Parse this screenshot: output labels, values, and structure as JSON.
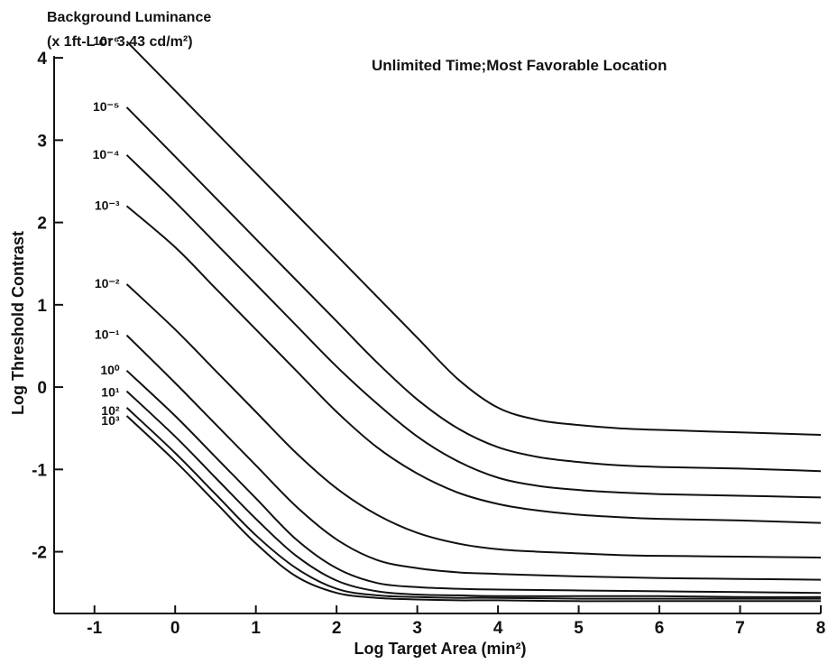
{
  "chart_data": {
    "type": "line",
    "title": "",
    "xlabel": "Log Target Area (min²)",
    "ylabel": "Log Threshold Contrast",
    "legend_title_line1": "Background Luminance",
    "legend_title_line2": "(x 1ft-L or 3.43 cd/m²)",
    "annotation": "Unlimited Time;Most Favorable Location",
    "xlim": [
      -1.5,
      8
    ],
    "ylim": [
      -2.75,
      4.1
    ],
    "xticks": [
      -1,
      0,
      1,
      2,
      3,
      4,
      5,
      6,
      7,
      8
    ],
    "yticks": [
      4,
      3,
      2,
      1,
      0,
      -1,
      -2
    ],
    "grid": false,
    "series": [
      {
        "name": "10⁻⁶",
        "x": [
          -0.6,
          0,
          0.5,
          1,
          1.5,
          2,
          2.5,
          3,
          3.5,
          4,
          4.5,
          5,
          5.5,
          6,
          7,
          8
        ],
        "y": [
          4.2,
          3.6,
          3.1,
          2.6,
          2.1,
          1.6,
          1.1,
          0.6,
          0.1,
          -0.25,
          -0.4,
          -0.46,
          -0.5,
          -0.52,
          -0.55,
          -0.58
        ]
      },
      {
        "name": "10⁻⁵",
        "x": [
          -0.6,
          0,
          0.5,
          1,
          1.5,
          2,
          2.5,
          3,
          3.5,
          4,
          4.5,
          5,
          5.5,
          6,
          7,
          8
        ],
        "y": [
          3.4,
          2.8,
          2.3,
          1.8,
          1.3,
          0.8,
          0.3,
          -0.15,
          -0.5,
          -0.73,
          -0.85,
          -0.91,
          -0.95,
          -0.97,
          -0.99,
          -1.02
        ]
      },
      {
        "name": "10⁻⁴",
        "x": [
          -0.6,
          0,
          0.5,
          1,
          1.5,
          2,
          2.5,
          3,
          3.5,
          4,
          4.5,
          5,
          5.5,
          6,
          7,
          8
        ],
        "y": [
          2.82,
          2.25,
          1.75,
          1.25,
          0.75,
          0.25,
          -0.2,
          -0.6,
          -0.9,
          -1.1,
          -1.2,
          -1.25,
          -1.28,
          -1.3,
          -1.32,
          -1.34
        ]
      },
      {
        "name": "10⁻³",
        "x": [
          -0.6,
          0,
          0.5,
          1,
          1.5,
          2,
          2.5,
          3,
          3.5,
          4,
          4.5,
          5,
          5.5,
          6,
          7,
          8
        ],
        "y": [
          2.2,
          1.7,
          1.2,
          0.7,
          0.2,
          -0.3,
          -0.73,
          -1.05,
          -1.28,
          -1.42,
          -1.5,
          -1.55,
          -1.58,
          -1.6,
          -1.62,
          -1.65
        ]
      },
      {
        "name": "10⁻²",
        "x": [
          -0.6,
          0,
          0.5,
          1,
          1.5,
          2,
          2.5,
          3,
          3.5,
          4,
          4.5,
          5,
          5.5,
          6,
          7,
          8
        ],
        "y": [
          1.25,
          0.7,
          0.2,
          -0.3,
          -0.8,
          -1.23,
          -1.55,
          -1.77,
          -1.9,
          -1.97,
          -2.0,
          -2.02,
          -2.04,
          -2.05,
          -2.06,
          -2.07
        ]
      },
      {
        "name": "10⁻¹",
        "x": [
          -0.6,
          0,
          0.5,
          1,
          1.5,
          2,
          2.5,
          3,
          3.5,
          4,
          5,
          6,
          7,
          8
        ],
        "y": [
          0.63,
          0.05,
          -0.45,
          -0.95,
          -1.45,
          -1.85,
          -2.1,
          -2.2,
          -2.25,
          -2.27,
          -2.3,
          -2.32,
          -2.33,
          -2.34
        ]
      },
      {
        "name": "10⁰",
        "x": [
          -0.6,
          0,
          0.5,
          1,
          1.5,
          2,
          2.5,
          3,
          3.5,
          4,
          5,
          6,
          7,
          8
        ],
        "y": [
          0.2,
          -0.35,
          -0.85,
          -1.35,
          -1.85,
          -2.2,
          -2.38,
          -2.43,
          -2.45,
          -2.46,
          -2.47,
          -2.48,
          -2.49,
          -2.5
        ]
      },
      {
        "name": "10¹",
        "x": [
          -0.6,
          0,
          0.5,
          1,
          1.5,
          2,
          2.5,
          3,
          3.5,
          4,
          5,
          6,
          7,
          8
        ],
        "y": [
          -0.05,
          -0.6,
          -1.1,
          -1.6,
          -2.05,
          -2.35,
          -2.48,
          -2.52,
          -2.53,
          -2.54,
          -2.54,
          -2.54,
          -2.55,
          -2.55
        ]
      },
      {
        "name": "10²",
        "x": [
          -0.6,
          0,
          0.5,
          1,
          1.5,
          2,
          2.5,
          3,
          3.5,
          4,
          5,
          6,
          7,
          8
        ],
        "y": [
          -0.25,
          -0.8,
          -1.3,
          -1.8,
          -2.2,
          -2.45,
          -2.53,
          -2.55,
          -2.56,
          -2.56,
          -2.57,
          -2.57,
          -2.57,
          -2.57
        ]
      },
      {
        "name": "10³",
        "x": [
          -0.6,
          0,
          0.5,
          1,
          1.5,
          2,
          2.5,
          3,
          3.5,
          4,
          5,
          6,
          7,
          8
        ],
        "y": [
          -0.35,
          -0.9,
          -1.4,
          -1.9,
          -2.3,
          -2.5,
          -2.56,
          -2.58,
          -2.59,
          -2.59,
          -2.6,
          -2.6,
          -2.6,
          -2.6
        ]
      }
    ]
  }
}
